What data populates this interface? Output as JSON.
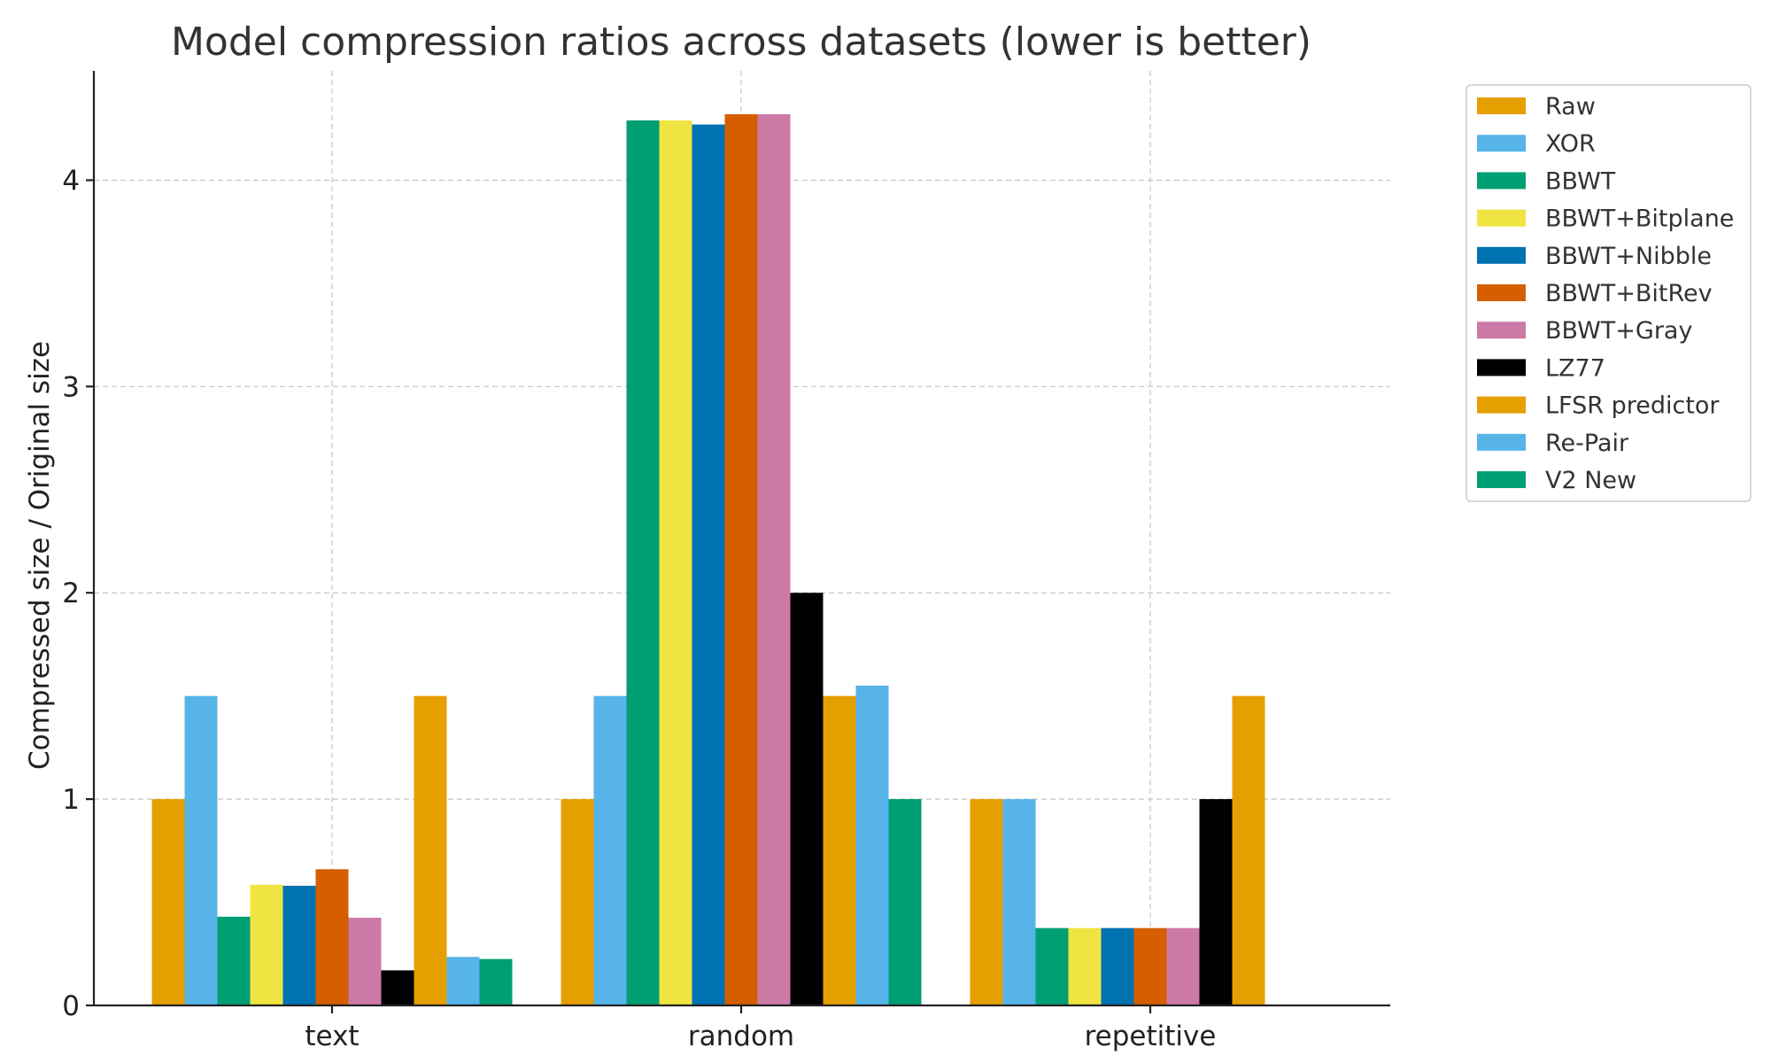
{
  "chart_data": {
    "type": "bar",
    "title": "Model compression ratios across datasets (lower is better)",
    "xlabel": "",
    "ylabel": "Compressed size / Original size",
    "ylim": [
      0,
      4.53
    ],
    "yticks": [
      0,
      1,
      2,
      3,
      4
    ],
    "grid": true,
    "legend_position": "outside-top-right",
    "categories": [
      "text",
      "random",
      "repetitive"
    ],
    "series": [
      {
        "name": "Raw",
        "color": "#E69F00",
        "values": [
          1.0,
          1.0,
          1.0
        ]
      },
      {
        "name": "XOR",
        "color": "#56B4E9",
        "values": [
          1.5,
          1.5,
          1.0
        ]
      },
      {
        "name": "BBWT",
        "color": "#009E73",
        "values": [
          0.43,
          4.29,
          0.375
        ]
      },
      {
        "name": "BBWT+Bitplane",
        "color": "#F0E442",
        "values": [
          0.585,
          4.29,
          0.375
        ]
      },
      {
        "name": "BBWT+Nibble",
        "color": "#0072B2",
        "values": [
          0.58,
          4.27,
          0.375
        ]
      },
      {
        "name": "BBWT+BitRev",
        "color": "#D55E00",
        "values": [
          0.66,
          4.32,
          0.375
        ]
      },
      {
        "name": "BBWT+Gray",
        "color": "#CC79A7",
        "values": [
          0.425,
          4.32,
          0.375
        ]
      },
      {
        "name": "LZ77",
        "color": "#000000",
        "values": [
          0.17,
          2.0,
          1.0
        ]
      },
      {
        "name": "LFSR predictor",
        "color": "#E69F00",
        "values": [
          1.5,
          1.5,
          1.5
        ]
      },
      {
        "name": "Re-Pair",
        "color": "#56B4E9",
        "values": [
          0.235,
          1.55,
          null
        ]
      },
      {
        "name": "V2 New",
        "color": "#009E73",
        "values": [
          0.225,
          1.0,
          null
        ]
      }
    ]
  }
}
